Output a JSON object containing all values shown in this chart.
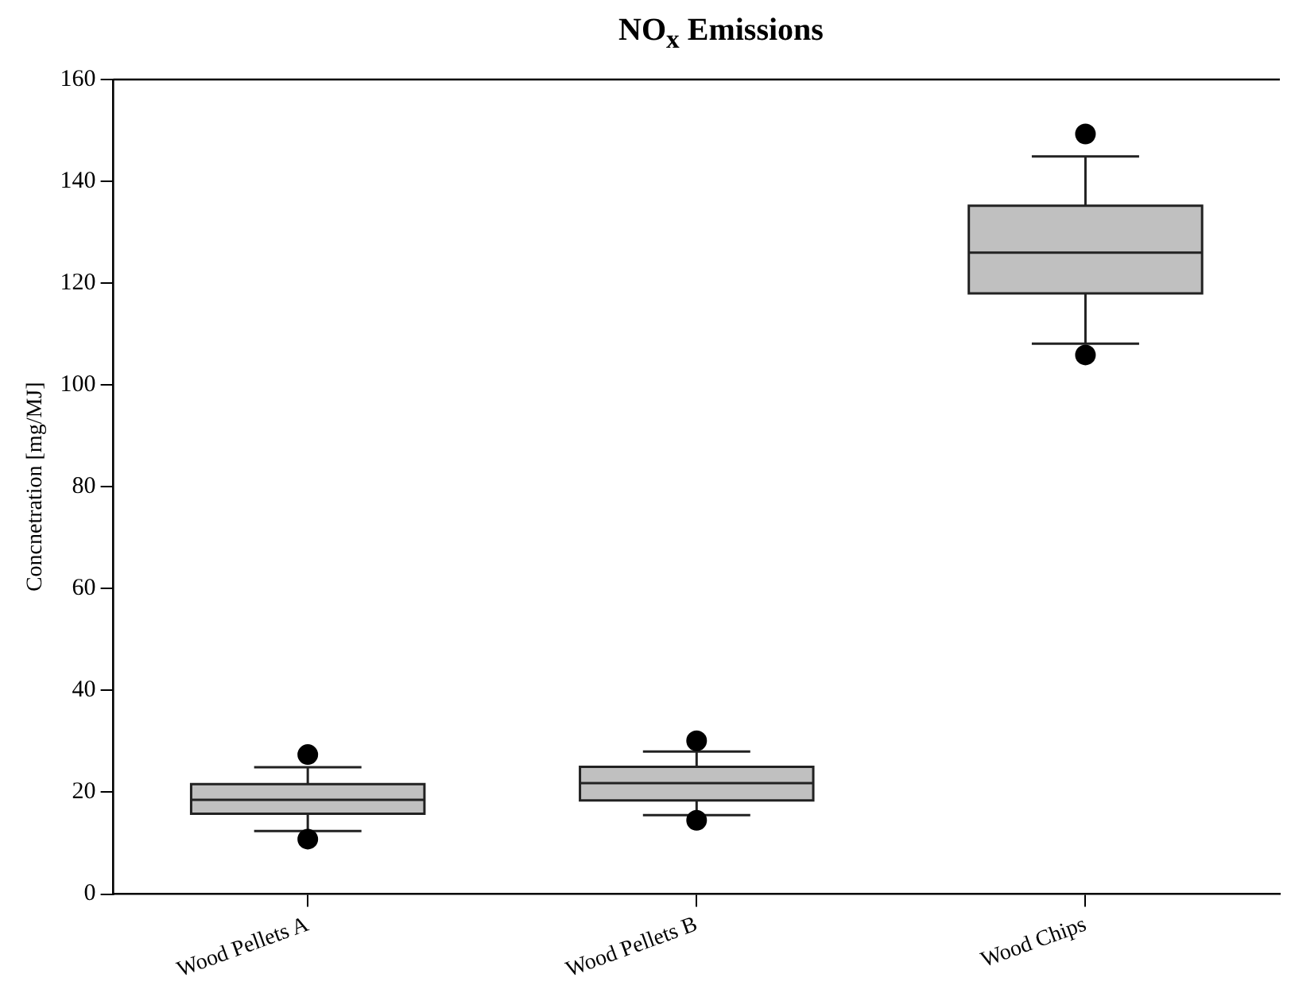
{
  "chart_data": {
    "type": "box",
    "title": "NO$_{x}$ Emissions",
    "ylabel": "Concnetration [mg/MJ]",
    "categories": [
      "Wood Pellets A",
      "Wood Pellets B",
      "Wood Chips"
    ],
    "series": [
      {
        "color": "#c0c0c0",
        "boxes": [
          {
            "low": 12.4,
            "q1": 15.8,
            "median": 18.5,
            "q3": 21.6,
            "high": 24.9,
            "outliers": [
              10.8,
              27.4
            ]
          },
          {
            "low": 15.5,
            "q1": 18.4,
            "median": 21.8,
            "q3": 25.0,
            "high": 28.0,
            "outliers": [
              14.5,
              30.1
            ]
          },
          {
            "low": 108.1,
            "q1": 118.0,
            "median": 126.0,
            "q3": 135.2,
            "high": 144.9,
            "outliers": [
              105.9,
              149.3
            ]
          }
        ]
      }
    ],
    "ylim": [
      0,
      160
    ],
    "yticks": [
      0,
      20,
      40,
      60,
      80,
      100,
      120,
      140,
      160
    ],
    "grid": false,
    "legend": false
  }
}
